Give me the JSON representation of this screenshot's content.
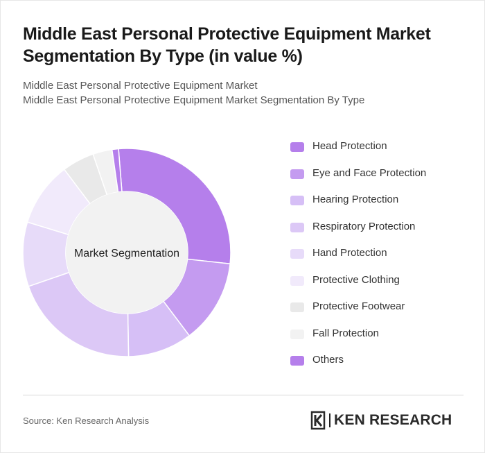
{
  "header": {
    "title": "Middle East Personal Protective Equipment Market Segmentation By Type (in value %)",
    "subtitle_line1": "Middle East Personal Protective Equipment Market",
    "subtitle_line2": "Middle East Personal Protective Equipment Market Segmentation By Type"
  },
  "chart_data": {
    "type": "pie",
    "variant": "donut",
    "center_label": "Market Segmentation",
    "legend_position": "right",
    "categories": [
      "Head Protection",
      "Eye and Face Protection",
      "Hearing Protection",
      "Respiratory Protection",
      "Hand Protection",
      "Protective Clothing",
      "Protective Footwear",
      "Fall Protection",
      "Others"
    ],
    "values": [
      28,
      13,
      10,
      20,
      10,
      10,
      5,
      3,
      1
    ],
    "colors": [
      "#b57feb",
      "#c49bf0",
      "#d6bff6",
      "#dcc8f6",
      "#e7dbf9",
      "#f1eafb",
      "#e9e9e9",
      "#f2f2f2",
      "#b57feb"
    ]
  },
  "footer": {
    "source": "Source: Ken Research Analysis",
    "logo_text": "KEN RESEARCH"
  }
}
